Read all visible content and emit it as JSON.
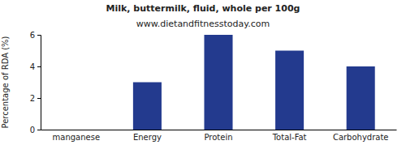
{
  "chart_data": {
    "type": "bar",
    "title": "Milk, buttermilk, fluid, whole per 100g",
    "subtitle": "www.dietandfitnesstoday.com",
    "y_label": "Percentage of RDA (%)",
    "categories": [
      "manganese",
      "Energy",
      "Protein",
      "Total-Fat",
      "Carbohydrate"
    ],
    "values": [
      0,
      3,
      6,
      5,
      4
    ],
    "color": "#233a8e",
    "ylim": [
      0,
      6
    ],
    "yticks": [
      0,
      2,
      4,
      6
    ],
    "grid": false
  }
}
